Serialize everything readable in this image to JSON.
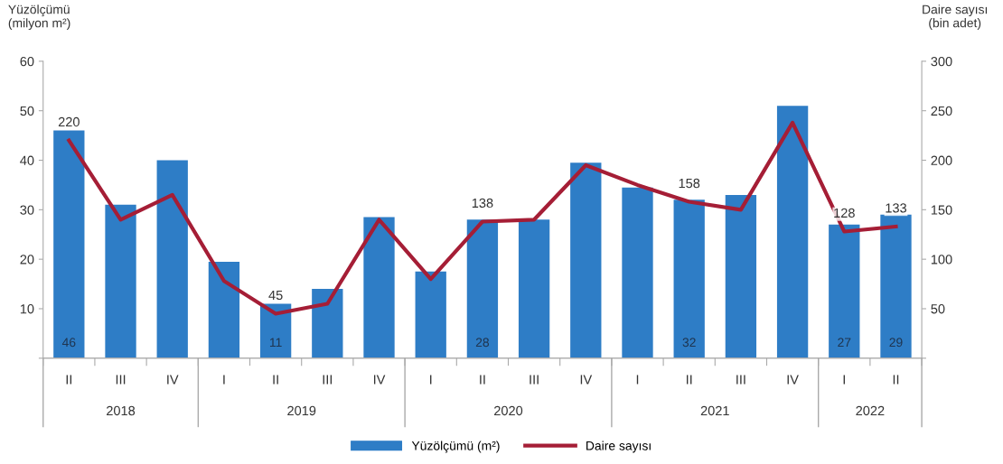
{
  "chart_data": {
    "type": "bar",
    "categories": [
      "II",
      "III",
      "IV",
      "I",
      "II",
      "III",
      "IV",
      "I",
      "II",
      "III",
      "IV",
      "I",
      "II",
      "III",
      "IV",
      "I",
      "II"
    ],
    "series": [
      {
        "name": "Yüzölçümü (m²)",
        "color": "#2e7dc6",
        "values": [
          46,
          31,
          40,
          19.5,
          11,
          14,
          28.5,
          17.5,
          28,
          28,
          39.5,
          34.5,
          32,
          33,
          51,
          27,
          29
        ],
        "value_labels": [
          "46",
          null,
          null,
          null,
          "11",
          null,
          null,
          null,
          "28",
          null,
          null,
          null,
          "32",
          null,
          null,
          "27",
          "29"
        ]
      },
      {
        "name": "Daire sayısı",
        "type": "line",
        "axis": "y2",
        "color": "#a51e36",
        "values": [
          220,
          140,
          165,
          78,
          45,
          55,
          140,
          80,
          138,
          140,
          195,
          175,
          158,
          150,
          238,
          128,
          133
        ],
        "value_labels": [
          "220",
          null,
          null,
          null,
          "45",
          null,
          null,
          null,
          "138",
          null,
          null,
          null,
          "158",
          null,
          null,
          "128",
          "133"
        ]
      }
    ],
    "ylabel": "Yüzölçümü\n(milyon m²)",
    "y2label": "Daire sayısı\n(bin adet)",
    "ylim": [
      0,
      60
    ],
    "yticks": [
      {
        "value": 0,
        "label": null
      },
      10,
      20,
      30,
      40,
      50,
      60
    ],
    "y2lim": [
      0,
      300
    ],
    "y2ticks": [
      {
        "value": 0,
        "label": null
      },
      50,
      100,
      150,
      200,
      250,
      300
    ],
    "annotations": [
      "2018",
      "2019",
      "2020",
      "2021",
      "2022"
    ],
    "legend": "bottom",
    "grid": false,
    "marker": "none",
    "line_style": "solid"
  }
}
